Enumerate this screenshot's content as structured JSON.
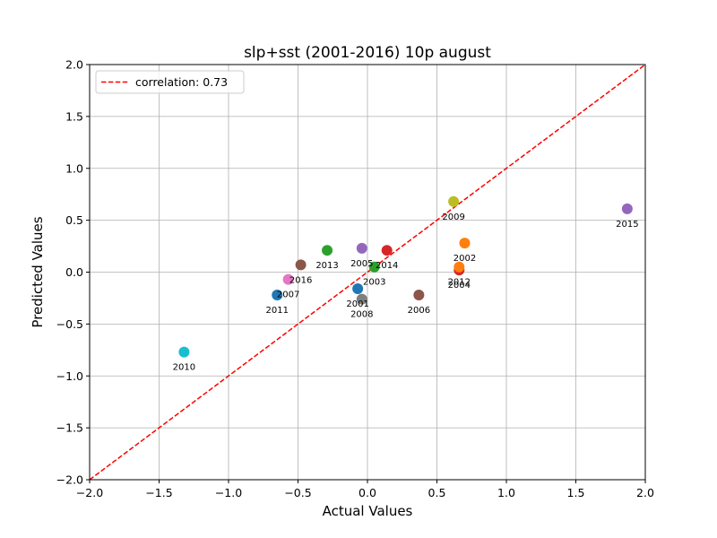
{
  "chart_data": {
    "type": "scatter",
    "title": "slp+sst (2001-2016) 10p august",
    "xlabel": "Actual Values",
    "ylabel": "Predicted Values",
    "xlim": [
      -2.0,
      2.0
    ],
    "ylim": [
      -2.0,
      2.0
    ],
    "xticks": [
      "−2.0",
      "−1.5",
      "−1.0",
      "−0.5",
      "0.0",
      "0.5",
      "1.0",
      "1.5",
      "2.0"
    ],
    "yticks": [
      "−2.0",
      "−1.5",
      "−1.0",
      "−0.5",
      "0.0",
      "0.5",
      "1.0",
      "1.5",
      "2.0"
    ],
    "grid": true,
    "legend": {
      "position": "top-left",
      "label": "correlation: 0.73",
      "color": "#ff0000",
      "style": "dashed"
    },
    "reference_line": {
      "from": [
        -2.0,
        -2.0
      ],
      "to": [
        2.0,
        2.0
      ],
      "color": "#ff0000"
    },
    "points": [
      {
        "label": "2001",
        "x": -0.07,
        "y": -0.16,
        "color": "#1f77b4"
      },
      {
        "label": "2002",
        "x": 0.7,
        "y": 0.28,
        "color": "#ff7f0e"
      },
      {
        "label": "2003",
        "x": 0.05,
        "y": 0.05,
        "color": "#2ca02c"
      },
      {
        "label": "2004",
        "x": 0.66,
        "y": 0.02,
        "color": "#d62728"
      },
      {
        "label": "2005",
        "x": -0.04,
        "y": 0.23,
        "color": "#9467bd"
      },
      {
        "label": "2006",
        "x": 0.37,
        "y": -0.22,
        "color": "#8c564b"
      },
      {
        "label": "2007",
        "x": -0.57,
        "y": -0.07,
        "color": "#e377c2"
      },
      {
        "label": "2008",
        "x": -0.04,
        "y": -0.26,
        "color": "#7f7f7f"
      },
      {
        "label": "2009",
        "x": 0.62,
        "y": 0.68,
        "color": "#bcbd22"
      },
      {
        "label": "2010",
        "x": -1.32,
        "y": -0.77,
        "color": "#17becf"
      },
      {
        "label": "2011",
        "x": -0.65,
        "y": -0.22,
        "color": "#1f77b4"
      },
      {
        "label": "2012",
        "x": 0.66,
        "y": 0.05,
        "color": "#ff7f0e"
      },
      {
        "label": "2013",
        "x": -0.29,
        "y": 0.21,
        "color": "#2ca02c"
      },
      {
        "label": "2014",
        "x": 0.14,
        "y": 0.21,
        "color": "#d62728"
      },
      {
        "label": "2015",
        "x": 1.87,
        "y": 0.61,
        "color": "#9467bd"
      },
      {
        "label": "2016",
        "x": -0.48,
        "y": 0.07,
        "color": "#8c564b"
      }
    ]
  }
}
